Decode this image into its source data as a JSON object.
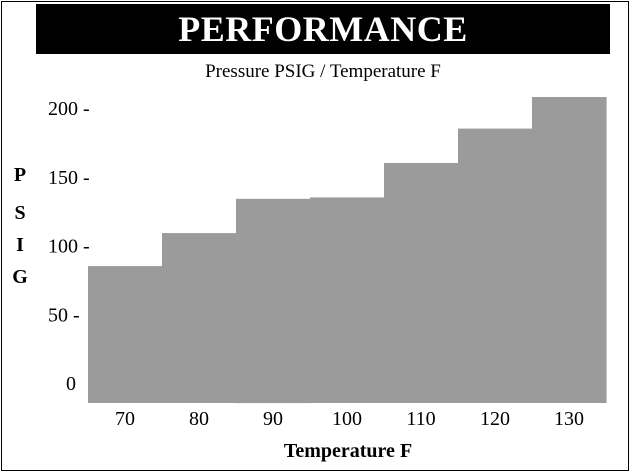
{
  "header": {
    "banner": "PERFORMANCE",
    "subtitle": "Pressure PSIG / Temperature F"
  },
  "colors": {
    "bar": "#9b9b9b",
    "banner_bg": "#000000",
    "banner_text": "#ffffff"
  },
  "chart_data": {
    "type": "bar",
    "title": "PERFORMANCE",
    "subtitle": "Pressure PSIG / Temperature F",
    "xlabel": "Temperature F",
    "ylabel": "PSIG",
    "ylabel_letters": [
      "P",
      "S",
      "I",
      "G"
    ],
    "categories": [
      "70",
      "80",
      "90",
      "100",
      "110",
      "120",
      "130"
    ],
    "values": [
      85,
      109,
      134,
      135,
      160,
      185,
      208
    ],
    "yticks": [
      0,
      50,
      100,
      150,
      200
    ],
    "ytick_labels": [
      "0",
      "50 -",
      "100 -",
      "150 -",
      "200 -"
    ],
    "ylim": [
      -15,
      215
    ],
    "grid": false,
    "legend": "none"
  }
}
